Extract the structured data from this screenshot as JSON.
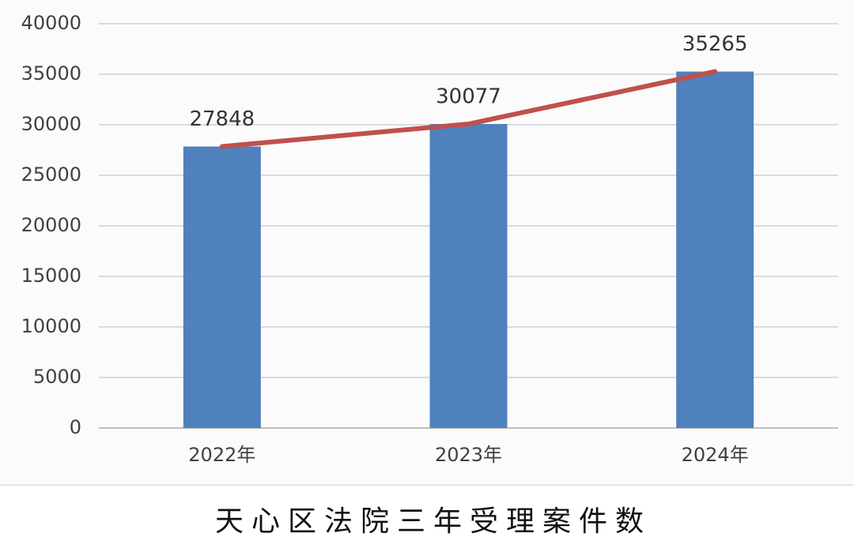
{
  "chart_data": {
    "type": "bar",
    "title": "天心区法院三年受理案件数",
    "categories": [
      "2022年",
      "2023年",
      "2024年"
    ],
    "series": [
      {
        "type": "bar",
        "color": "#4f81bd",
        "values": [
          27848,
          30077,
          35265
        ]
      },
      {
        "type": "line",
        "color": "#c0504d",
        "values": [
          27848,
          30077,
          35265
        ]
      }
    ],
    "ylim": [
      0,
      40000
    ],
    "yticks": [
      0,
      5000,
      10000,
      15000,
      20000,
      25000,
      30000,
      35000,
      40000
    ],
    "grid": true
  }
}
